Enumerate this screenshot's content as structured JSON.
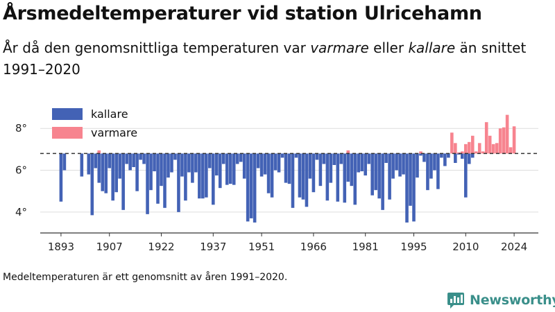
{
  "header": {
    "title": "Årsmedeltemperaturer vid station Ulricehamn",
    "subtitle_prefix": "År då den genomsnittliga temperaturen var ",
    "subtitle_warm": "varmare",
    "subtitle_mid": " eller ",
    "subtitle_cold": "kallare",
    "subtitle_suffix": " än snittet 1991–2020"
  },
  "footer": {
    "note": "Medeltemperaturen är ett genomsnitt av åren 1991–2020.",
    "brand": "Newsworthy"
  },
  "colors": {
    "cold": "#4362b5",
    "warm": "#f7848f",
    "baseline": "#333333",
    "grid": "#dddddd",
    "axis": "#333333",
    "brand": "#3a8f8a"
  },
  "chart_data": {
    "type": "bar",
    "title": "Årsmedeltemperaturer vid station Ulricehamn",
    "baseline": 6.8,
    "baseline_style": "dashed",
    "ylim": [
      3.0,
      9.5
    ],
    "yticks": [
      4,
      6,
      8
    ],
    "ytick_labels": [
      "4°",
      "6°",
      "8°"
    ],
    "xlim": [
      1887,
      2031
    ],
    "xticks": [
      1893,
      1907,
      1922,
      1937,
      1951,
      1966,
      1981,
      1995,
      2010,
      2024
    ],
    "xtick_labels": [
      "1893",
      "1907",
      "1922",
      "1937",
      "1951",
      "1966",
      "1981",
      "1995",
      "2010",
      "2024"
    ],
    "grid": "horizontal",
    "legend": {
      "position": "top-left",
      "entries": [
        {
          "label": "kallare",
          "color": "#4362b5"
        },
        {
          "label": "varmare",
          "color": "#f7848f"
        }
      ]
    },
    "series": [
      {
        "name": "kallare",
        "color": "#4362b5",
        "points": [
          [
            1893,
            4.5
          ],
          [
            1894,
            6.0
          ],
          [
            1899,
            5.7
          ],
          [
            1901,
            5.8
          ],
          [
            1902,
            3.85
          ],
          [
            1903,
            6.1
          ],
          [
            1904,
            5.4
          ],
          [
            1905,
            5.0
          ],
          [
            1906,
            4.9
          ],
          [
            1907,
            6.1
          ],
          [
            1908,
            4.55
          ],
          [
            1909,
            4.95
          ],
          [
            1910,
            5.6
          ],
          [
            1911,
            4.1
          ],
          [
            1912,
            6.3
          ],
          [
            1913,
            6.0
          ],
          [
            1914,
            6.15
          ],
          [
            1915,
            5.0
          ],
          [
            1916,
            6.5
          ],
          [
            1917,
            6.3
          ],
          [
            1918,
            3.9
          ],
          [
            1919,
            5.05
          ],
          [
            1920,
            5.95
          ],
          [
            1921,
            4.4
          ],
          [
            1922,
            5.25
          ],
          [
            1923,
            4.2
          ],
          [
            1924,
            5.65
          ],
          [
            1925,
            5.9
          ],
          [
            1926,
            6.5
          ],
          [
            1927,
            4.0
          ],
          [
            1928,
            5.7
          ],
          [
            1929,
            4.55
          ],
          [
            1930,
            5.9
          ],
          [
            1931,
            5.4
          ],
          [
            1932,
            5.9
          ],
          [
            1933,
            4.65
          ],
          [
            1934,
            4.65
          ],
          [
            1935,
            4.7
          ],
          [
            1936,
            6.1
          ],
          [
            1937,
            4.35
          ],
          [
            1938,
            5.75
          ],
          [
            1939,
            5.15
          ],
          [
            1940,
            6.3
          ],
          [
            1941,
            5.3
          ],
          [
            1942,
            5.35
          ],
          [
            1943,
            5.3
          ],
          [
            1944,
            6.3
          ],
          [
            1945,
            6.4
          ],
          [
            1946,
            5.6
          ],
          [
            1947,
            3.55
          ],
          [
            1948,
            3.7
          ],
          [
            1949,
            3.5
          ],
          [
            1950,
            6.1
          ],
          [
            1951,
            5.7
          ],
          [
            1952,
            5.8
          ],
          [
            1953,
            4.9
          ],
          [
            1954,
            4.7
          ],
          [
            1955,
            6.0
          ],
          [
            1956,
            5.9
          ],
          [
            1957,
            6.6
          ],
          [
            1958,
            5.4
          ],
          [
            1959,
            5.35
          ],
          [
            1960,
            4.2
          ],
          [
            1961,
            6.6
          ],
          [
            1962,
            4.7
          ],
          [
            1963,
            4.6
          ],
          [
            1964,
            4.25
          ],
          [
            1965,
            5.6
          ],
          [
            1966,
            4.95
          ],
          [
            1967,
            6.5
          ],
          [
            1968,
            5.25
          ],
          [
            1969,
            6.3
          ],
          [
            1970,
            4.55
          ],
          [
            1971,
            5.4
          ],
          [
            1972,
            6.25
          ],
          [
            1973,
            4.5
          ],
          [
            1974,
            6.3
          ],
          [
            1975,
            4.45
          ],
          [
            1976,
            5.45
          ],
          [
            1977,
            5.25
          ],
          [
            1978,
            4.35
          ],
          [
            1979,
            5.9
          ],
          [
            1980,
            5.95
          ],
          [
            1981,
            5.75
          ],
          [
            1982,
            6.3
          ],
          [
            1983,
            4.8
          ],
          [
            1984,
            5.05
          ],
          [
            1985,
            4.65
          ],
          [
            1986,
            4.1
          ],
          [
            1987,
            6.35
          ],
          [
            1988,
            4.6
          ],
          [
            1989,
            5.6
          ],
          [
            1990,
            6.0
          ],
          [
            1991,
            5.7
          ],
          [
            1992,
            5.8
          ],
          [
            1993,
            3.5
          ],
          [
            1994,
            4.3
          ],
          [
            1995,
            3.55
          ],
          [
            1996,
            5.65
          ],
          [
            1997,
            6.7
          ],
          [
            1998,
            6.4
          ],
          [
            1999,
            5.05
          ],
          [
            2000,
            5.6
          ],
          [
            2001,
            6.0
          ],
          [
            2002,
            5.1
          ],
          [
            2003,
            6.6
          ],
          [
            2004,
            6.2
          ],
          [
            2005,
            6.6
          ],
          [
            2007,
            6.35
          ],
          [
            2008,
            6.75
          ],
          [
            2009,
            6.55
          ],
          [
            2010,
            4.7
          ],
          [
            2011,
            6.3
          ],
          [
            2012,
            6.6
          ]
        ]
      },
      {
        "name": "varmare",
        "color": "#f7848f",
        "points": [
          [
            1904,
            6.95
          ],
          [
            1976,
            6.95
          ],
          [
            1997,
            6.9
          ],
          [
            2006,
            7.8
          ],
          [
            2007,
            7.3
          ],
          [
            2008,
            6.85
          ],
          [
            2009,
            6.9
          ],
          [
            2010,
            7.25
          ],
          [
            2011,
            7.35
          ],
          [
            2012,
            7.65
          ],
          [
            2013,
            6.9
          ],
          [
            2014,
            7.3
          ],
          [
            2015,
            6.9
          ],
          [
            2016,
            8.3
          ],
          [
            2017,
            7.65
          ],
          [
            2018,
            7.25
          ],
          [
            2019,
            7.3
          ],
          [
            2020,
            8.0
          ],
          [
            2021,
            8.05
          ],
          [
            2022,
            8.65
          ],
          [
            2023,
            7.1
          ],
          [
            2024,
            8.1
          ]
        ]
      }
    ]
  }
}
